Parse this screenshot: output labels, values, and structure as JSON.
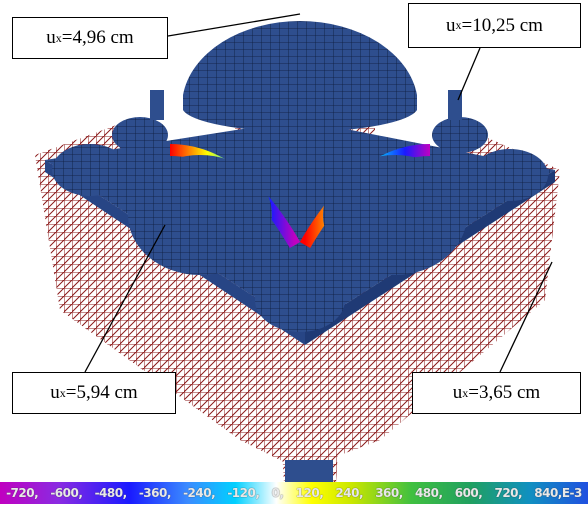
{
  "callouts": [
    {
      "base": "u",
      "sub": "x",
      "text": "=4,96 cm"
    },
    {
      "base": "u",
      "sub": "x",
      "text": "=10,25 cm"
    },
    {
      "base": "u",
      "sub": "x",
      "text": "=5,94 cm"
    },
    {
      "base": "u",
      "sub": "x",
      "text": "=3,65 cm"
    }
  ],
  "legend": {
    "labels": [
      "-720,",
      "-600,",
      "-480,",
      "-360,",
      "-240,",
      "-120,",
      "0,",
      "120,",
      "240,",
      "360,",
      "480,",
      "600,",
      "720,",
      "840,E-3"
    ]
  }
}
